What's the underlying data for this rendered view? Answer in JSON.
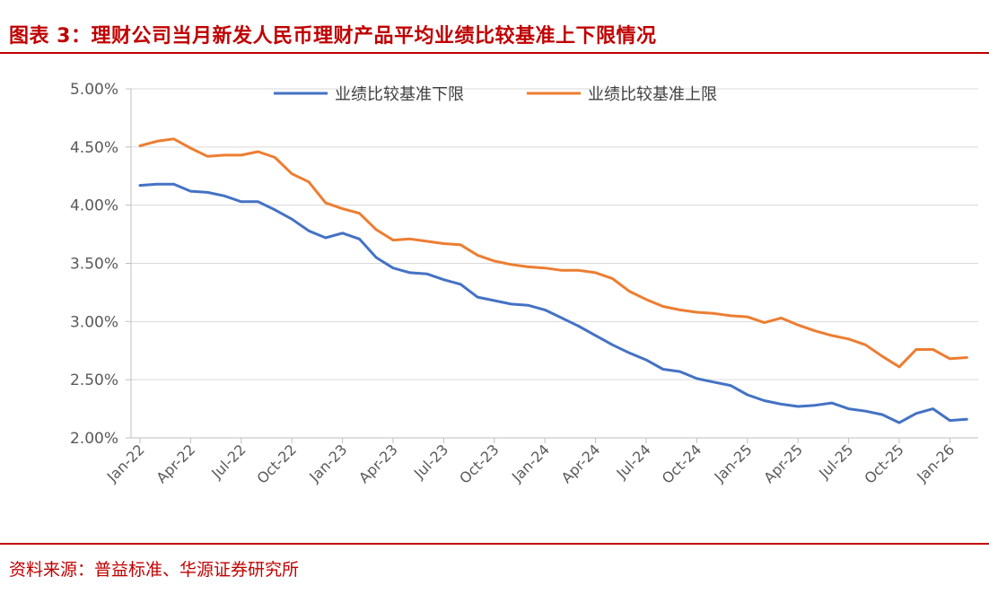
{
  "header": {
    "title": "图表 3：理财公司当月新发人民币理财产品平均业绩比较基准上下限情况"
  },
  "footer": {
    "source": "资料来源：普益标准、华源证券研究所"
  },
  "colors": {
    "accent": "#c00000",
    "lower": "#4472c4",
    "upper": "#ed7d31",
    "grid": "#d9d9d9"
  },
  "chart_data": {
    "type": "line",
    "yticks": [
      "5.00%",
      "4.50%",
      "4.00%",
      "3.50%",
      "3.00%",
      "2.50%",
      "2.00%"
    ],
    "ylim": [
      2.0,
      5.0
    ],
    "xticks": [
      "Jan-22",
      "Apr-22",
      "Jul-22",
      "Oct-22",
      "Jan-23",
      "Apr-23",
      "Jul-23",
      "Oct-23",
      "Jan-24",
      "Apr-24",
      "Jul-24",
      "Oct-24",
      "Jan-25",
      "Apr-25",
      "Jul-25",
      "Oct-25",
      "Jan-26"
    ],
    "legend_position": "top",
    "grid": true,
    "series": [
      {
        "name": "业绩比较基准下限",
        "color": "#4472c4",
        "values": [
          4.17,
          4.18,
          4.18,
          4.12,
          4.11,
          4.08,
          4.03,
          4.03,
          3.96,
          3.88,
          3.78,
          3.72,
          3.76,
          3.71,
          3.55,
          3.46,
          3.42,
          3.41,
          3.36,
          3.32,
          3.21,
          3.18,
          3.15,
          3.14,
          3.1,
          3.03,
          2.96,
          2.88,
          2.8,
          2.73,
          2.67,
          2.59,
          2.57,
          2.51,
          2.48,
          2.45,
          2.37,
          2.32,
          2.29,
          2.27,
          2.28,
          2.3,
          2.25,
          2.23,
          2.2,
          2.13,
          2.21,
          2.25,
          2.15,
          2.16
        ]
      },
      {
        "name": "业绩比较基准上限",
        "color": "#ed7d31",
        "values": [
          4.51,
          4.55,
          4.57,
          4.49,
          4.42,
          4.43,
          4.43,
          4.46,
          4.41,
          4.27,
          4.2,
          4.02,
          3.97,
          3.93,
          3.79,
          3.7,
          3.71,
          3.69,
          3.67,
          3.66,
          3.57,
          3.52,
          3.49,
          3.47,
          3.46,
          3.44,
          3.44,
          3.42,
          3.37,
          3.26,
          3.19,
          3.13,
          3.1,
          3.08,
          3.07,
          3.05,
          3.04,
          2.99,
          3.03,
          2.97,
          2.92,
          2.88,
          2.85,
          2.8,
          2.7,
          2.61,
          2.76,
          2.76,
          2.68,
          2.69
        ]
      }
    ]
  }
}
